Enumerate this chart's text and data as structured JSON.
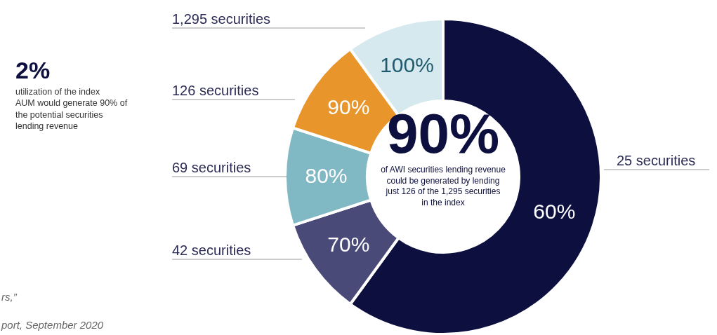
{
  "chart_data": {
    "type": "donut",
    "categories": [
      "25 securities",
      "42 securities",
      "69 securities",
      "126 securities",
      "1,295 securities"
    ],
    "values": [
      60,
      10,
      10,
      10,
      10
    ],
    "colors": [
      "#0d0f3f",
      "#4a4a78",
      "#80b8c4",
      "#e8952c",
      "#d5e9ee"
    ],
    "annotations": [
      "90%",
      "of AWI securities lending revenue could be generated by lending just 126 of the 1,295 securities in the index",
      "2%",
      "utilization of the index AUM would generate 90% of the potential securities lending revenue",
      "rs,”",
      "port, September 2020",
      "60%",
      "70%",
      "80%",
      "90%",
      "100%"
    ]
  }
}
